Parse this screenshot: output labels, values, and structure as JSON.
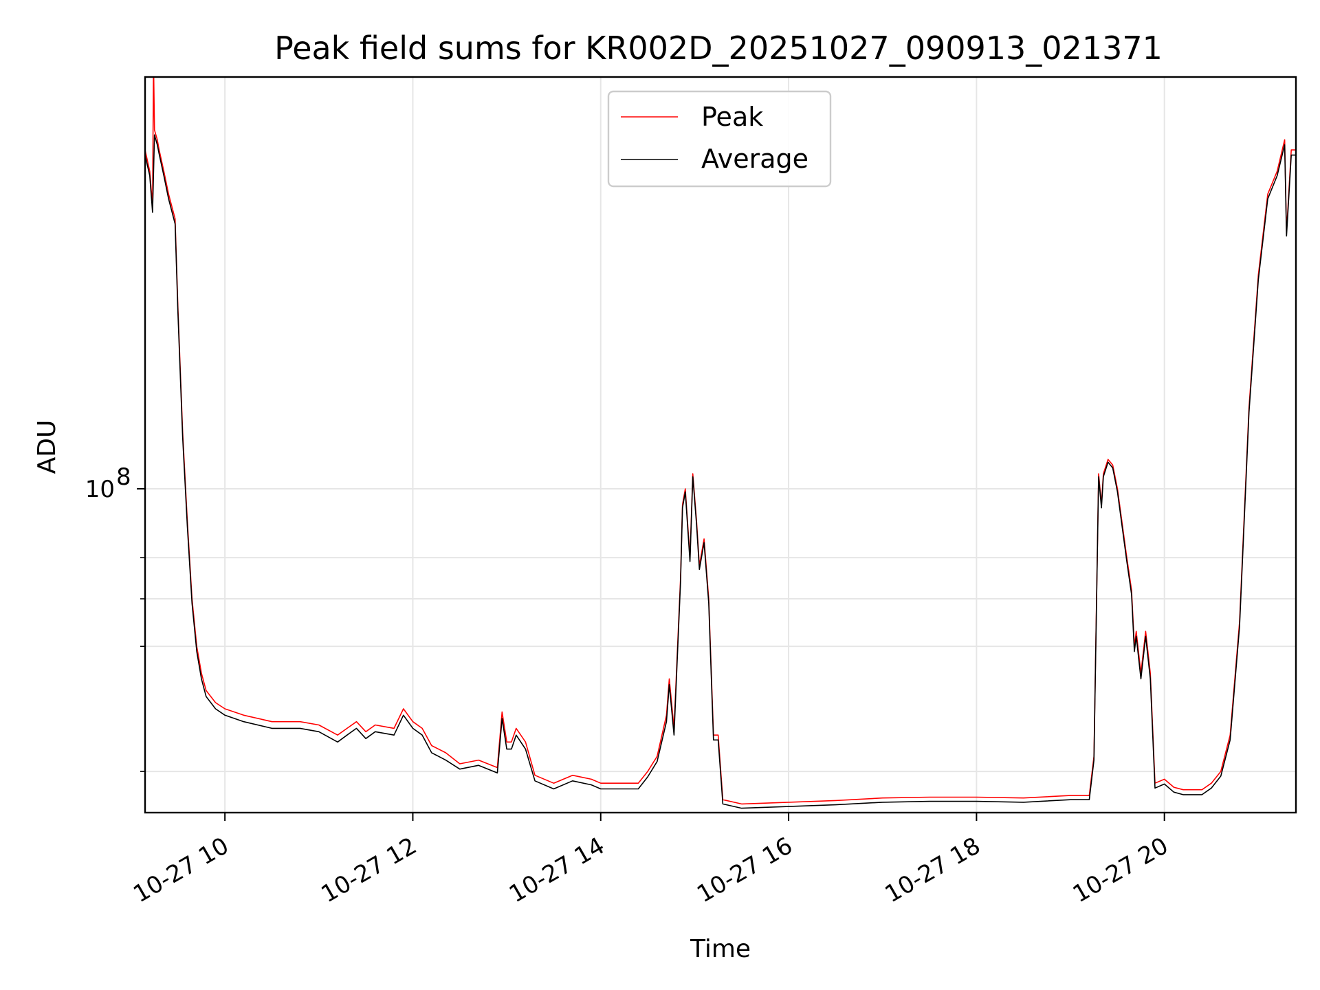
{
  "chart_data": {
    "type": "line",
    "title": "Peak field sums for KR002D_20251027_090913_021371",
    "xlabel": "Time",
    "ylabel": "ADU",
    "yscale": "log",
    "xlim": [
      9.15,
      21.4
    ],
    "ylim": [
      35000000,
      380000000
    ],
    "grid": true,
    "x_ticks": [
      {
        "value": 10,
        "label": "10-27 10"
      },
      {
        "value": 12,
        "label": "10-27 12"
      },
      {
        "value": 14,
        "label": "10-27 14"
      },
      {
        "value": 16,
        "label": "10-27 16"
      },
      {
        "value": 18,
        "label": "10-27 18"
      },
      {
        "value": 20,
        "label": "10-27 20"
      }
    ],
    "y_major_ticks": [
      {
        "value": 100000000,
        "base": "10",
        "exp": "8"
      }
    ],
    "y_minor_ticks": [
      40000000,
      60000000,
      70000000,
      80000000
    ],
    "legend": {
      "position": "top-center",
      "entries": [
        {
          "label": "Peak",
          "color": "#ff0000"
        },
        {
          "label": "Average",
          "color": "#000000"
        }
      ]
    },
    "series": [
      {
        "name": "Peak",
        "color": "#ff0000",
        "x": [
          9.15,
          9.2,
          9.23,
          9.24,
          9.25,
          9.28,
          9.3,
          9.35,
          9.4,
          9.47,
          9.5,
          9.55,
          9.6,
          9.65,
          9.7,
          9.75,
          9.8,
          9.9,
          10.0,
          10.2,
          10.5,
          10.8,
          11.0,
          11.2,
          11.3,
          11.4,
          11.5,
          11.6,
          11.8,
          11.9,
          12.0,
          12.1,
          12.2,
          12.35,
          12.5,
          12.7,
          12.9,
          12.95,
          13.0,
          13.05,
          13.1,
          13.2,
          13.3,
          13.5,
          13.7,
          13.9,
          14.0,
          14.2,
          14.4,
          14.5,
          14.6,
          14.7,
          14.73,
          14.78,
          14.85,
          14.87,
          14.9,
          14.95,
          14.98,
          15.02,
          15.05,
          15.1,
          15.15,
          15.2,
          15.25,
          15.3,
          15.5,
          16.0,
          16.5,
          17.0,
          17.5,
          18.0,
          18.5,
          19.0,
          19.2,
          19.25,
          19.3,
          19.33,
          19.35,
          19.4,
          19.45,
          19.5,
          19.6,
          19.65,
          19.68,
          19.7,
          19.75,
          19.8,
          19.85,
          19.9,
          20.0,
          20.1,
          20.2,
          20.4,
          20.5,
          20.6,
          20.7,
          20.8,
          20.9,
          21.0,
          21.1,
          21.2,
          21.28,
          21.3,
          21.35,
          21.4
        ],
        "y": [
          300000000,
          280000000,
          250000000,
          400000000,
          320000000,
          310000000,
          300000000,
          280000000,
          260000000,
          240000000,
          180000000,
          120000000,
          90000000,
          70000000,
          60000000,
          55000000,
          52000000,
          50000000,
          49000000,
          48000000,
          47000000,
          47000000,
          46500000,
          45000000,
          46000000,
          47000000,
          45500000,
          46500000,
          46000000,
          49000000,
          47000000,
          46000000,
          43500000,
          42500000,
          41000000,
          41500000,
          40500000,
          48500000,
          44000000,
          44000000,
          46000000,
          44000000,
          39500000,
          38500000,
          39500000,
          39000000,
          38500000,
          38500000,
          38500000,
          40000000,
          42000000,
          48000000,
          54000000,
          46000000,
          75000000,
          95000000,
          100000000,
          80000000,
          105000000,
          90000000,
          78000000,
          85000000,
          70000000,
          45000000,
          45000000,
          36500000,
          36000000,
          36200000,
          36400000,
          36700000,
          36800000,
          36800000,
          36700000,
          37000000,
          37000000,
          42000000,
          105000000,
          95000000,
          105000000,
          110000000,
          108000000,
          100000000,
          80000000,
          72000000,
          60000000,
          63000000,
          55000000,
          63000000,
          55000000,
          38500000,
          39000000,
          38000000,
          37700000,
          37700000,
          38500000,
          40000000,
          45000000,
          65000000,
          130000000,
          200000000,
          260000000,
          280000000,
          310000000,
          230000000,
          300000000,
          300000000
        ]
      },
      {
        "name": "Average",
        "color": "#000000",
        "x": [
          9.15,
          9.2,
          9.23,
          9.25,
          9.28,
          9.3,
          9.35,
          9.4,
          9.47,
          9.5,
          9.55,
          9.6,
          9.65,
          9.7,
          9.75,
          9.8,
          9.9,
          10.0,
          10.2,
          10.5,
          10.8,
          11.0,
          11.2,
          11.3,
          11.4,
          11.5,
          11.6,
          11.8,
          11.9,
          12.0,
          12.1,
          12.2,
          12.35,
          12.5,
          12.7,
          12.9,
          12.95,
          13.0,
          13.05,
          13.1,
          13.2,
          13.3,
          13.5,
          13.7,
          13.9,
          14.0,
          14.2,
          14.4,
          14.5,
          14.6,
          14.7,
          14.73,
          14.78,
          14.85,
          14.87,
          14.9,
          14.95,
          14.98,
          15.02,
          15.05,
          15.1,
          15.15,
          15.2,
          15.25,
          15.3,
          15.5,
          16.0,
          16.5,
          17.0,
          17.5,
          18.0,
          18.5,
          19.0,
          19.2,
          19.25,
          19.3,
          19.33,
          19.35,
          19.4,
          19.45,
          19.5,
          19.6,
          19.65,
          19.68,
          19.7,
          19.75,
          19.8,
          19.85,
          19.9,
          20.0,
          20.1,
          20.2,
          20.4,
          20.5,
          20.6,
          20.7,
          20.8,
          20.9,
          21.0,
          21.1,
          21.2,
          21.28,
          21.3,
          21.35,
          21.4
        ],
        "y": [
          295000000,
          276000000,
          245000000,
          315000000,
          305000000,
          296000000,
          276000000,
          256000000,
          236000000,
          177000000,
          118000000,
          88500000,
          69000000,
          59000000,
          54000000,
          51000000,
          49000000,
          48000000,
          47000000,
          46000000,
          46000000,
          45500000,
          44000000,
          45000000,
          46000000,
          44500000,
          45500000,
          45000000,
          48000000,
          46000000,
          45000000,
          42500000,
          41500000,
          40300000,
          40800000,
          39800000,
          47500000,
          43000000,
          43000000,
          45000000,
          43000000,
          38800000,
          37800000,
          38800000,
          38300000,
          37800000,
          37800000,
          37800000,
          39300000,
          41300000,
          47000000,
          53000000,
          45000000,
          74000000,
          94000000,
          99000000,
          79000000,
          104000000,
          89000000,
          77000000,
          84000000,
          69000000,
          44300000,
          44300000,
          36000000,
          35500000,
          35700000,
          35900000,
          36200000,
          36300000,
          36300000,
          36200000,
          36500000,
          36500000,
          41500000,
          104000000,
          94000000,
          104000000,
          109000000,
          107000000,
          99000000,
          79000000,
          71000000,
          59000000,
          62000000,
          54000000,
          62000000,
          54000000,
          37900000,
          38400000,
          37400000,
          37100000,
          37100000,
          37900000,
          39400000,
          44300000,
          64000000,
          128000000,
          197000000,
          256000000,
          276000000,
          305000000,
          227000000,
          295000000,
          295000000
        ]
      }
    ]
  }
}
